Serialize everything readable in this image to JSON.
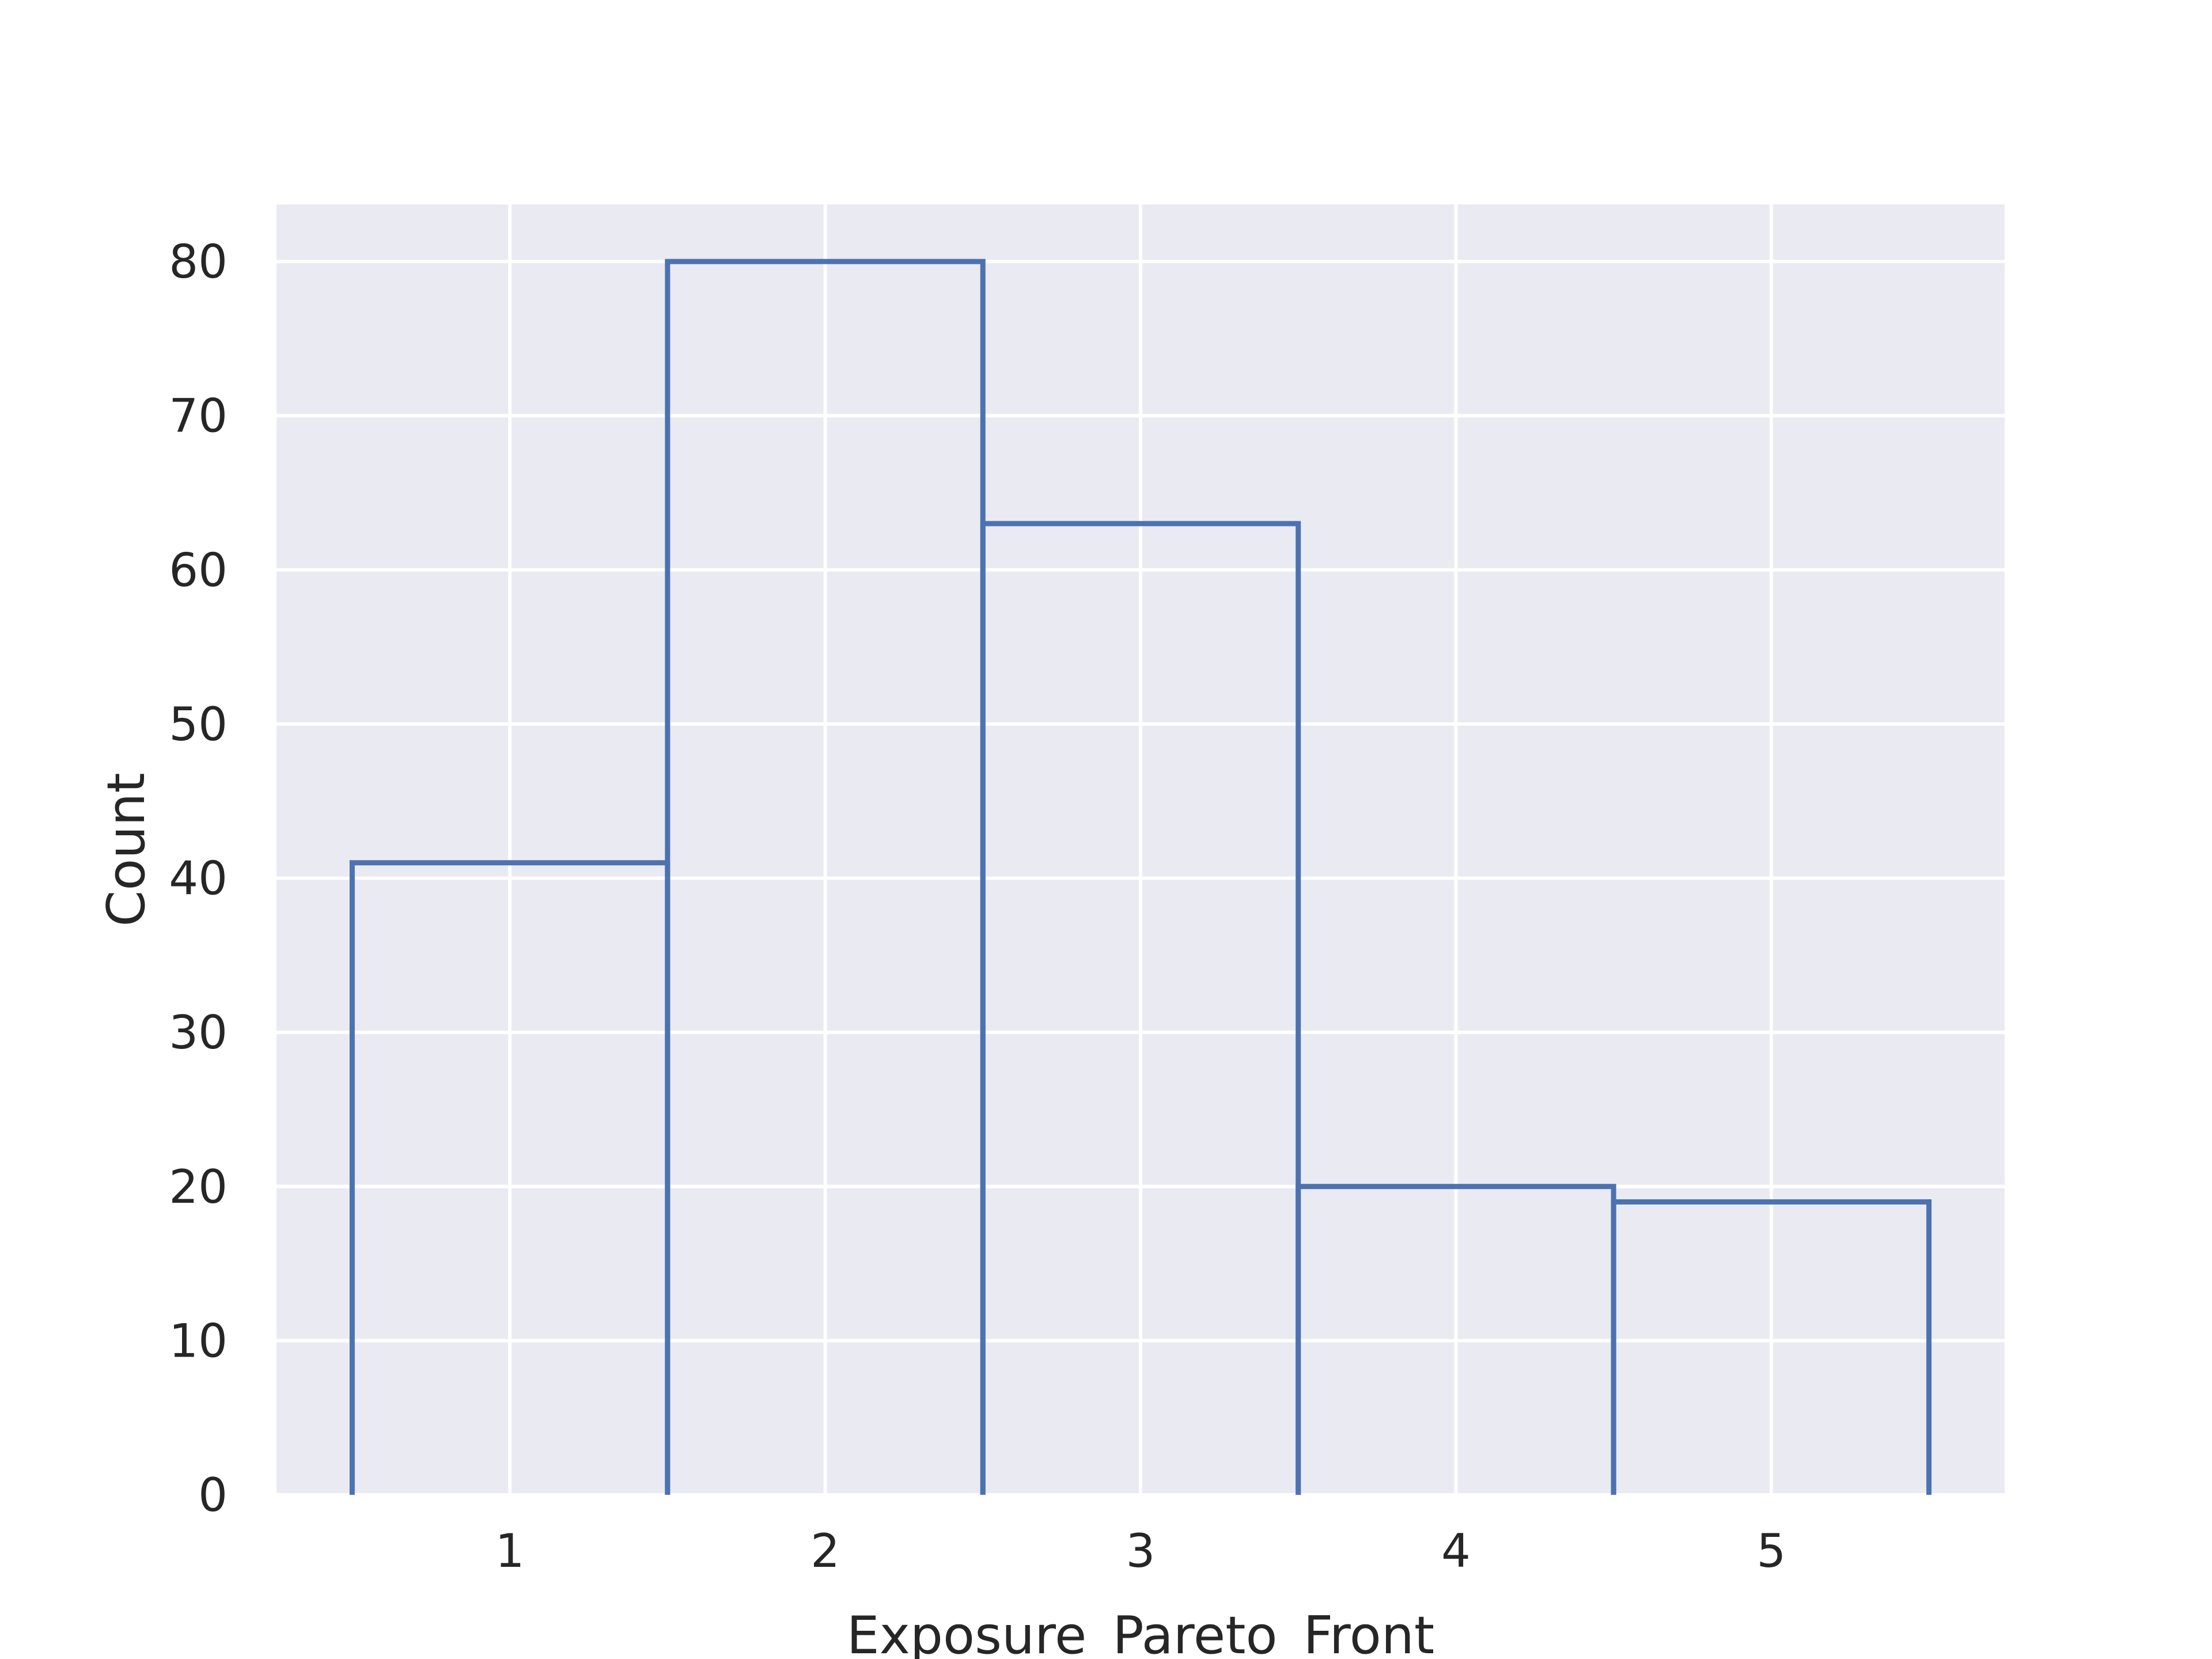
{
  "chart_data": {
    "type": "bar",
    "style": "step-histogram",
    "title": "",
    "xlabel": "Exposure_Pareto_Front",
    "ylabel": "Count",
    "categories": [
      "1",
      "2",
      "3",
      "4",
      "5"
    ],
    "x": [
      1,
      2,
      3,
      4,
      5
    ],
    "values": [
      41,
      80,
      63,
      20,
      19
    ],
    "xlim": [
      0.26,
      5.74
    ],
    "ylim": [
      0,
      83.7
    ],
    "x_ticks": [
      1,
      2,
      3,
      4,
      5
    ],
    "y_ticks": [
      0,
      10,
      20,
      30,
      40,
      50,
      60,
      70,
      80
    ],
    "grid": true,
    "legend": "none",
    "colors": {
      "plot_background": "#eaeaf2",
      "grid": "#ffffff",
      "outline": "#4c72b0",
      "text": "#262626"
    }
  }
}
